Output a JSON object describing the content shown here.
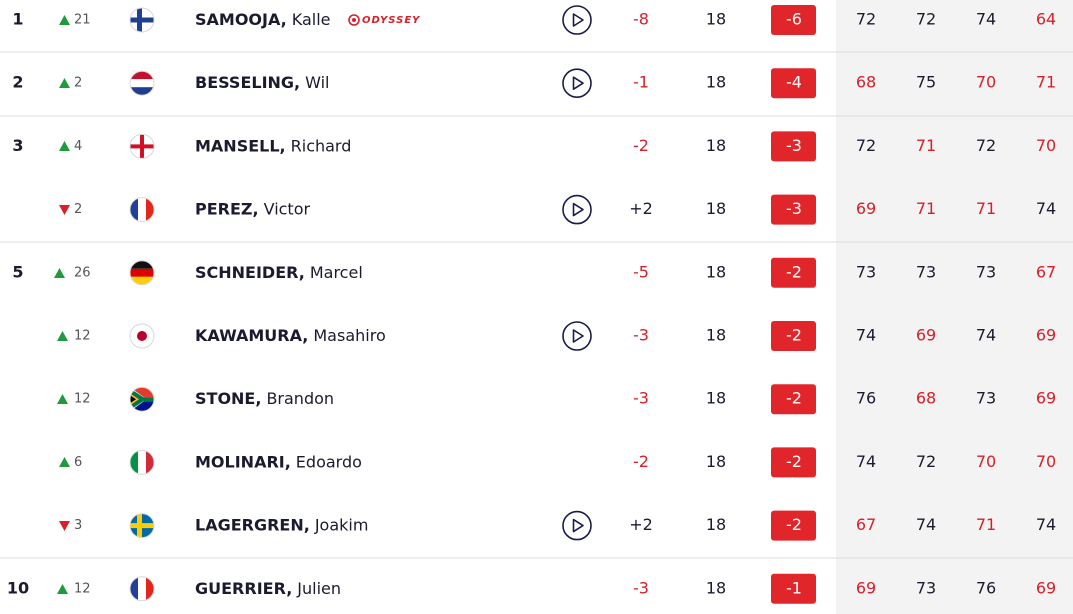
{
  "colors": {
    "under": "#d7202a",
    "level": "#1b1b2f",
    "badge": "#e0262b",
    "move_up": "#1f9a3e",
    "move_down": "#d7202a"
  },
  "table": {
    "rows": [
      {
        "pos": "1",
        "move": "21",
        "last": "SAMOOJA,",
        "first": "Kalle",
        "sponsor": "ODYSSEY",
        "today": "-8",
        "today_under": true,
        "thru": "18",
        "total": "-6",
        "rounds": [
          72,
          72,
          74,
          64
        ],
        "rounds_under": [
          false,
          false,
          false,
          true
        ]
      },
      {
        "pos": "2",
        "move": "2",
        "last": "BESSELING,",
        "first": "Wil",
        "today": "-1",
        "today_under": true,
        "thru": "18",
        "total": "-4",
        "rounds": [
          68,
          75,
          70,
          71
        ],
        "rounds_under": [
          true,
          false,
          true,
          true
        ]
      },
      {
        "pos": "3",
        "move": "4",
        "last": "MANSELL,",
        "first": "Richard",
        "today": "-2",
        "today_under": true,
        "thru": "18",
        "total": "-3",
        "rounds": [
          72,
          71,
          72,
          70
        ],
        "rounds_under": [
          false,
          true,
          false,
          true
        ]
      },
      {
        "move": "2",
        "last": "PEREZ,",
        "first": "Victor",
        "today": "+2",
        "today_under": false,
        "thru": "18",
        "total": "-3",
        "rounds": [
          69,
          71,
          71,
          74
        ],
        "rounds_under": [
          true,
          true,
          true,
          false
        ]
      },
      {
        "pos": "5",
        "move": "26",
        "last": "SCHNEIDER,",
        "first": "Marcel",
        "today": "-5",
        "today_under": true,
        "thru": "18",
        "total": "-2",
        "rounds": [
          73,
          73,
          73,
          67
        ],
        "rounds_under": [
          false,
          false,
          false,
          true
        ]
      },
      {
        "move": "12",
        "last": "KAWAMURA,",
        "first": "Masahiro",
        "today": "-3",
        "today_under": true,
        "thru": "18",
        "total": "-2",
        "rounds": [
          74,
          69,
          74,
          69
        ],
        "rounds_under": [
          false,
          true,
          false,
          true
        ]
      },
      {
        "move": "12",
        "last": "STONE,",
        "first": "Brandon",
        "today": "-3",
        "today_under": true,
        "thru": "18",
        "total": "-2",
        "rounds": [
          76,
          68,
          73,
          69
        ],
        "rounds_under": [
          false,
          true,
          false,
          true
        ]
      },
      {
        "move": "6",
        "last": "MOLINARI,",
        "first": "Edoardo",
        "today": "-2",
        "today_under": true,
        "thru": "18",
        "total": "-2",
        "rounds": [
          74,
          72,
          70,
          70
        ],
        "rounds_under": [
          false,
          false,
          true,
          true
        ]
      },
      {
        "move": "3",
        "last": "LAGERGREN,",
        "first": "Joakim",
        "today": "+2",
        "today_under": false,
        "thru": "18",
        "total": "-2",
        "rounds": [
          67,
          74,
          71,
          74
        ],
        "rounds_under": [
          true,
          false,
          true,
          false
        ]
      },
      {
        "pos": "10",
        "move": "12",
        "last": "GUERRIER,",
        "first": "Julien",
        "today": "-3",
        "today_under": true,
        "thru": "18",
        "total": "-1",
        "rounds": [
          69,
          73,
          76,
          69
        ],
        "rounds_under": [
          true,
          false,
          false,
          true
        ]
      }
    ]
  }
}
